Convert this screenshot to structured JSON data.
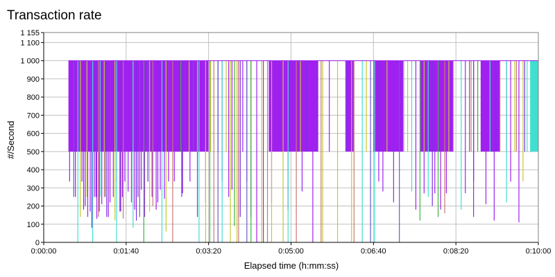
{
  "chart_data": {
    "type": "bar",
    "title": "Transaction rate",
    "xlabel": "Elapsed time (h:mm:ss)",
    "ylabel": "#/Second",
    "xlim": [
      0,
      600
    ],
    "ylim": [
      0,
      1155
    ],
    "yticks": [
      0,
      100,
      200,
      300,
      400,
      500,
      600,
      700,
      800,
      900,
      1000,
      1100,
      1155
    ],
    "ytick_labels": [
      "0",
      "100",
      "200",
      "300",
      "400",
      "500",
      "600",
      "700",
      "800",
      "900",
      "1 000",
      "1 100",
      "1 155"
    ],
    "xticks": [
      0,
      100,
      200,
      300,
      400,
      500,
      600
    ],
    "xtick_labels": [
      "0:00:00",
      "0:01:40",
      "0:03:20",
      "0:05:00",
      "0:06:40",
      "0:08:20",
      "0:10:00"
    ],
    "grid": true,
    "legend": false,
    "series": [
      {
        "color": "#a020f0",
        "bands": [
          [
            30,
            152,
            1000
          ],
          [
            152,
            200,
            1000
          ],
          [
            273,
            333,
            1000
          ],
          [
            366,
            376,
            1000
          ],
          [
            400,
            437,
            1000
          ],
          [
            457,
            496,
            1000
          ],
          [
            530,
            553,
            1000
          ]
        ],
        "spikes": [
          [
            31,
            335
          ],
          [
            38,
            250
          ],
          [
            42,
            500
          ],
          [
            46,
            335
          ],
          [
            50,
            200
          ],
          [
            53,
            140
          ],
          [
            56,
            170
          ],
          [
            58,
            80
          ],
          [
            61,
            250
          ],
          [
            64,
            130
          ],
          [
            67,
            170
          ],
          [
            70,
            210
          ],
          [
            74,
            250
          ],
          [
            78,
            140
          ],
          [
            80,
            220
          ],
          [
            84,
            250
          ],
          [
            88,
            335
          ],
          [
            92,
            170
          ],
          [
            95,
            250
          ],
          [
            98,
            335
          ],
          [
            102,
            280
          ],
          [
            106,
            220
          ],
          [
            110,
            180
          ],
          [
            114,
            250
          ],
          [
            118,
            290
          ],
          [
            122,
            140
          ],
          [
            126,
            335
          ],
          [
            131,
            250
          ],
          [
            136,
            180
          ],
          [
            141,
            290
          ],
          [
            146,
            240
          ],
          [
            151,
            335
          ],
          [
            158,
            335
          ],
          [
            167,
            250
          ],
          [
            177,
            335
          ],
          [
            186,
            140
          ],
          [
            196,
            220
          ],
          [
            211,
            500
          ],
          [
            216,
            335
          ],
          [
            224,
            250
          ],
          [
            228,
            290
          ],
          [
            236,
            140
          ],
          [
            241,
            500
          ],
          [
            246,
            335
          ],
          [
            251,
            140
          ],
          [
            258,
            0
          ],
          [
            266,
            0
          ],
          [
            276,
            220
          ],
          [
            289,
            500
          ],
          [
            296,
            180
          ],
          [
            313,
            280
          ],
          [
            326,
            0
          ],
          [
            346,
            500
          ],
          [
            369,
            500
          ],
          [
            406,
            335
          ],
          [
            411,
            280
          ],
          [
            419,
            500
          ],
          [
            424,
            220
          ],
          [
            436,
            500
          ],
          [
            451,
            180
          ],
          [
            461,
            270
          ],
          [
            469,
            500
          ],
          [
            474,
            270
          ],
          [
            481,
            180
          ],
          [
            488,
            270
          ],
          [
            496,
            500
          ],
          [
            511,
            270
          ],
          [
            521,
            140
          ],
          [
            536,
            210
          ],
          [
            546,
            120
          ],
          [
            561,
            500
          ],
          [
            566,
            335
          ],
          [
            576,
            110
          ],
          [
            591,
            500
          ]
        ]
      },
      {
        "color": "#7b2fe0",
        "bands": [],
        "spikes": [
          [
            48,
            180
          ],
          [
            63,
            250
          ],
          [
            76,
            140
          ],
          [
            93,
            170
          ],
          [
            112,
            120
          ],
          [
            138,
            220
          ],
          [
            168,
            270
          ],
          [
            238,
            140
          ],
          [
            318,
            500
          ],
          [
            406,
            500
          ],
          [
            471,
            200
          ],
          [
            521,
            335
          ],
          [
            548,
            500
          ],
          [
            583,
            500
          ]
        ]
      },
      {
        "color": "#c8c832",
        "bands": [],
        "spikes": [
          [
            44,
            140
          ],
          [
            52,
            250
          ],
          [
            73,
            250
          ],
          [
            86,
            120
          ],
          [
            108,
            200
          ],
          [
            128,
            170
          ],
          [
            148,
            60
          ],
          [
            176,
            500
          ],
          [
            186,
            500
          ],
          [
            196,
            0
          ],
          [
            202,
            500
          ],
          [
            221,
            500
          ],
          [
            226,
            0
          ],
          [
            234,
            0
          ],
          [
            251,
            500
          ],
          [
            264,
            0
          ],
          [
            276,
            0
          ],
          [
            290,
            0
          ],
          [
            311,
            500
          ],
          [
            338,
            0
          ],
          [
            356,
            0
          ],
          [
            373,
            0
          ],
          [
            391,
            500
          ],
          [
            401,
            500
          ],
          [
            416,
            500
          ],
          [
            441,
            500
          ],
          [
            461,
            500
          ],
          [
            491,
            500
          ],
          [
            526,
            500
          ],
          [
            541,
            500
          ],
          [
            571,
            500
          ],
          [
            581,
            335
          ]
        ]
      },
      {
        "color": "#40e0d0",
        "bands": [
          [
            590,
            600,
            1000
          ]
        ],
        "spikes": [
          [
            41,
            0
          ],
          [
            59,
            0
          ],
          [
            68,
            250
          ],
          [
            88,
            0
          ],
          [
            108,
            80
          ],
          [
            143,
            0
          ],
          [
            188,
            0
          ],
          [
            216,
            0
          ],
          [
            296,
            0
          ],
          [
            386,
            0
          ],
          [
            401,
            0
          ],
          [
            436,
            500
          ],
          [
            446,
            280
          ],
          [
            466,
            250
          ],
          [
            506,
            180
          ],
          [
            541,
            500
          ],
          [
            561,
            220
          ],
          [
            586,
            500
          ]
        ]
      },
      {
        "color": "#c87878",
        "bands": [],
        "spikes": [
          [
            66,
            140
          ],
          [
            96,
            130
          ],
          [
            132,
            200
          ],
          [
            156,
            0
          ],
          [
            206,
            0
          ],
          [
            236,
            0
          ],
          [
            271,
            0
          ],
          [
            306,
            0
          ],
          [
            336,
            0
          ],
          [
            376,
            0
          ],
          [
            486,
            160
          ],
          [
            518,
            500
          ],
          [
            553,
            500
          ],
          [
            573,
            500
          ]
        ]
      },
      {
        "color": "#3cb43c",
        "bands": [],
        "spikes": [
          [
            121,
            0
          ],
          [
            166,
            500
          ],
          [
            201,
            0
          ],
          [
            231,
            90
          ],
          [
            251,
            0
          ],
          [
            456,
            120
          ],
          [
            478,
            140
          ],
          [
            526,
            500
          ]
        ]
      },
      {
        "color": "#6a5acd",
        "bands": [],
        "spikes": [
          [
            36,
            250
          ],
          [
            116,
            140
          ],
          [
            126,
            335
          ],
          [
            181,
            500
          ],
          [
            211,
            0
          ],
          [
            246,
            0
          ],
          [
            366,
            500
          ],
          [
            396,
            0
          ],
          [
            431,
            0
          ],
          [
            516,
            500
          ]
        ]
      }
    ]
  }
}
